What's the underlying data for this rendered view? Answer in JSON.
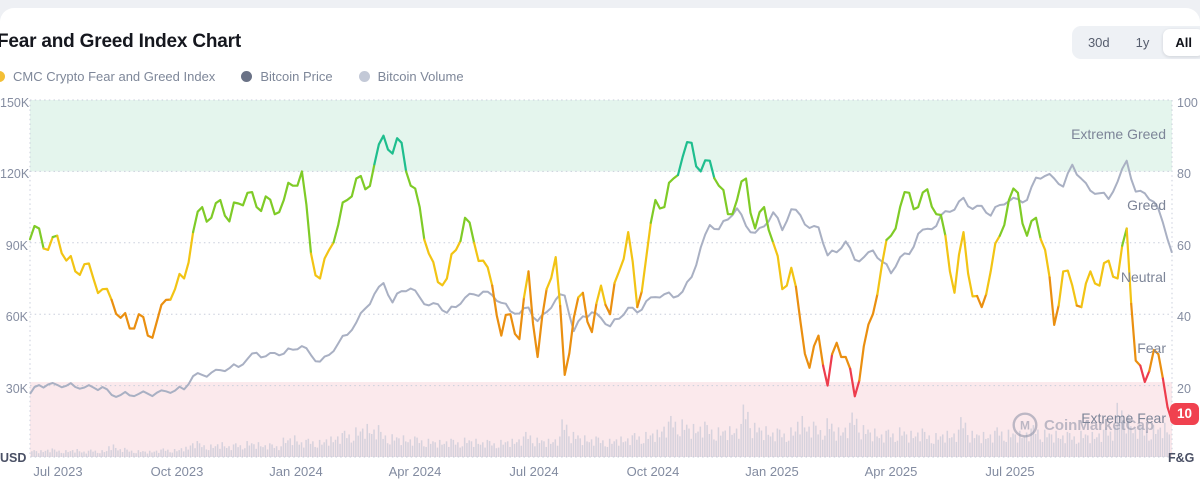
{
  "page": {
    "title": "Fear and Greed Index Chart"
  },
  "legend": [
    {
      "label": "CMC Crypto Fear and Greed Index",
      "color": "#F3BF35"
    },
    {
      "label": "Bitcoin Price",
      "color": "#6A7286"
    },
    {
      "label": "Bitcoin Volume",
      "color": "#C3C9D7"
    }
  ],
  "range_buttons": {
    "options": [
      "30d",
      "1y",
      "All"
    ],
    "selected": "All"
  },
  "axes": {
    "left_unit": "USD",
    "right_unit": "F&G",
    "left_ticks": [
      "150K",
      "120K",
      "90K",
      "60K",
      "30K"
    ],
    "right_ticks": [
      "100",
      "80",
      "60",
      "40",
      "20"
    ],
    "x_ticks": [
      "Jul 2023",
      "Oct 2023",
      "Jan 2024",
      "Apr 2024",
      "Jul 2024",
      "Oct 2024",
      "Jan 2025",
      "Apr 2025",
      "Jul 2025"
    ]
  },
  "zones": {
    "labels": [
      "Extreme Greed",
      "Greed",
      "Neutral",
      "Fear",
      "Extreme Fear"
    ],
    "greed_band_color": "#e4f5ed",
    "fear_band_color": "#fbe9ec"
  },
  "current_badge": {
    "value": "10",
    "color": "#f0414f"
  },
  "watermark": {
    "text": "CoinMarketCap"
  },
  "chart_data": {
    "type": "line",
    "title": "Fear and Greed Index Chart",
    "x_start": "Jun 2023",
    "x_end": "Nov 2025",
    "x_tick_labels": [
      "Jul 2023",
      "Oct 2023",
      "Jan 2024",
      "Apr 2024",
      "Jul 2024",
      "Oct 2024",
      "Jan 2025",
      "Apr 2025",
      "Jul 2025"
    ],
    "y_left_label": "Bitcoin Price (USD)",
    "y_left_range_k": [
      0,
      157
    ],
    "y_right_label": "CMC Crypto Fear and Greed Index",
    "y_right_range": [
      0,
      100
    ],
    "grid": "horizontal-dotted",
    "legend_position": "top-left",
    "current_fg_value": 10,
    "fg_color_thresholds": [
      25,
      45,
      61,
      79
    ],
    "palette": {
      "red": "#ED3D4D",
      "orange": "#EA8F10",
      "yellow": "#F2C414",
      "green": "#7FCB27",
      "teal": "#1FBE8E",
      "btc_line": "#A9B0C3",
      "volume": "#BFC4D4"
    },
    "series": [
      {
        "name": "CMC Crypto Fear and Greed Index",
        "unit": "index 0-100",
        "values": [
          61,
          64,
          58,
          62,
          55,
          52,
          54,
          50,
          47,
          44,
          39,
          36,
          40,
          34,
          38,
          44,
          47,
          50,
          63,
          70,
          67,
          72,
          66,
          71,
          74,
          70,
          73,
          68,
          72,
          76,
          80,
          57,
          50,
          58,
          65,
          72,
          78,
          75,
          82,
          90,
          85,
          88,
          76,
          70,
          57,
          49,
          50,
          58,
          67,
          60,
          55,
          48,
          34,
          40,
          33,
          52,
          28,
          47,
          56,
          23,
          39,
          46,
          35,
          48,
          40,
          52,
          63,
          42,
          56,
          72,
          70,
          78,
          84,
          88,
          80,
          83,
          76,
          68,
          72,
          78,
          64,
          70,
          60,
          47,
          53,
          38,
          25,
          34,
          20,
          32,
          28,
          17,
          31,
          40,
          54,
          62,
          70,
          74,
          70,
          75,
          68,
          62,
          46,
          63,
          45,
          42,
          52,
          62,
          72,
          74,
          62,
          67,
          58,
          37,
          52,
          48,
          42,
          52,
          48,
          55,
          50,
          64,
          27,
          21,
          30,
          22,
          10
        ]
      },
      {
        "name": "Bitcoin Price",
        "unit": "USD thousands",
        "values": [
          26.5,
          30.2,
          30.5,
          30.3,
          29.9,
          29.4,
          29.2,
          29.2,
          29.4,
          26.1,
          26.0,
          25.9,
          26.5,
          26.6,
          27.0,
          27.6,
          27.9,
          28.4,
          34.0,
          34.5,
          35.4,
          36.5,
          37.3,
          37.8,
          41.2,
          43.8,
          42.3,
          43.7,
          43.4,
          45.1,
          46.6,
          42.8,
          40.1,
          42.9,
          47.7,
          51.3,
          56.5,
          62.4,
          68.5,
          73.1,
          64.9,
          69.7,
          70.8,
          67.1,
          63.7,
          64.2,
          60.6,
          63.0,
          66.9,
          68.3,
          69.5,
          68.0,
          64.8,
          61.2,
          60.3,
          62.8,
          57.1,
          60.9,
          66.1,
          67.8,
          52.9,
          59.1,
          60.8,
          58.4,
          54.9,
          58.1,
          62.7,
          60.7,
          65.5,
          67.2,
          68.4,
          67.0,
          69.5,
          75.6,
          88.0,
          97.5,
          95.7,
          99.8,
          104.5,
          97.1,
          94.2,
          96.9,
          102.8,
          95.3,
          104.1,
          101.6,
          96.2,
          96.5,
          84.7,
          86.0,
          90.6,
          82.9,
          83.9,
          86.8,
          82.1,
          77.2,
          83.9,
          85.2,
          93.8,
          95.9,
          97.1,
          103.3,
          103.9,
          108.9,
          104.2,
          105.5,
          101.4,
          105.9,
          107.5,
          108.3,
          108.0,
          117.4,
          118.1,
          117.0,
          113.6,
          122.8,
          116.9,
          111.9,
          110.8,
          108.4,
          115.7,
          124.5,
          111.5,
          110.8,
          107.2,
          98.5,
          85.8
        ]
      },
      {
        "name": "Bitcoin Volume",
        "unit": "relative 0-1",
        "values": [
          0.14,
          0.12,
          0.15,
          0.13,
          0.12,
          0.14,
          0.11,
          0.13,
          0.12,
          0.22,
          0.16,
          0.13,
          0.12,
          0.11,
          0.13,
          0.15,
          0.14,
          0.18,
          0.28,
          0.24,
          0.22,
          0.26,
          0.22,
          0.24,
          0.28,
          0.26,
          0.24,
          0.22,
          0.34,
          0.38,
          0.3,
          0.32,
          0.3,
          0.36,
          0.42,
          0.46,
          0.52,
          0.58,
          0.56,
          0.44,
          0.4,
          0.38,
          0.36,
          0.34,
          0.32,
          0.3,
          0.32,
          0.3,
          0.34,
          0.32,
          0.3,
          0.28,
          0.3,
          0.32,
          0.36,
          0.44,
          0.34,
          0.32,
          0.36,
          0.66,
          0.44,
          0.38,
          0.36,
          0.34,
          0.32,
          0.36,
          0.38,
          0.42,
          0.44,
          0.48,
          0.62,
          0.72,
          0.66,
          0.58,
          0.62,
          0.56,
          0.52,
          0.54,
          0.58,
          0.92,
          0.6,
          0.54,
          0.5,
          0.48,
          0.52,
          0.72,
          0.62,
          0.55,
          0.68,
          0.52,
          0.6,
          0.78,
          0.56,
          0.5,
          0.46,
          0.48,
          0.52,
          0.46,
          0.5,
          0.44,
          0.42,
          0.46,
          0.48,
          0.7,
          0.46,
          0.44,
          0.46,
          0.52,
          0.48,
          0.46,
          0.5,
          0.56,
          0.48,
          0.46,
          0.44,
          0.42,
          0.46,
          0.44,
          0.48,
          0.52,
          0.95,
          0.75,
          0.58,
          0.52,
          0.56,
          0.6,
          0.55
        ]
      }
    ]
  }
}
